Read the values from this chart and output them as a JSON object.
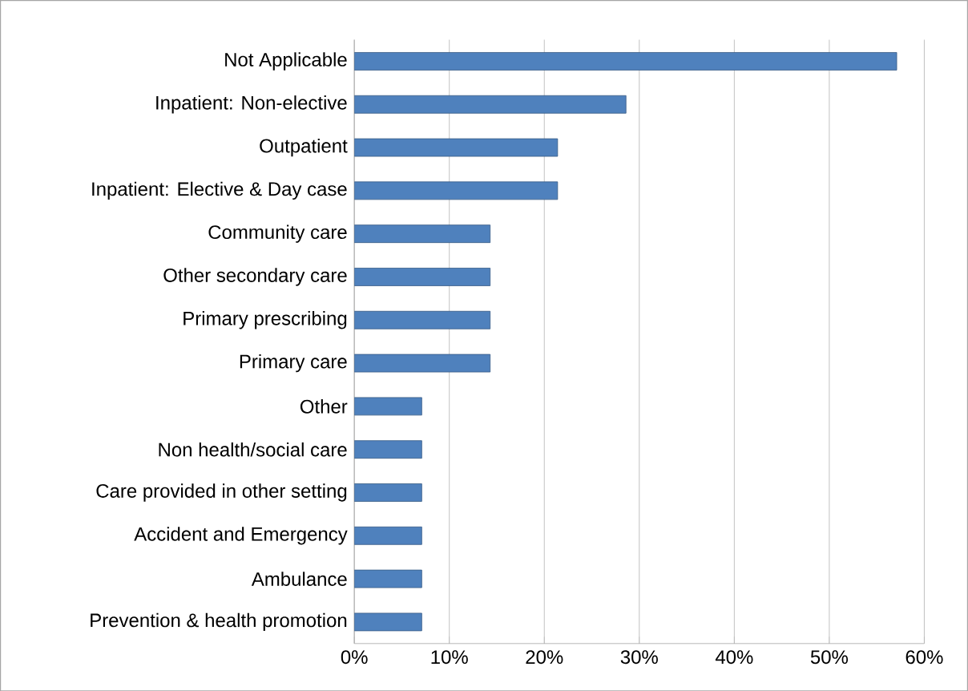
{
  "chart_data": {
    "type": "bar",
    "orientation": "horizontal",
    "categories": [
      "Not Applicable",
      "Inpatient: Non-elective",
      "Outpatient",
      "Inpatient: Elective & Day case",
      "Community care",
      "Other secondary care",
      "Primary prescribing",
      "Primary care",
      "Other",
      "Non health/social care",
      "Care provided in other setting",
      "Accident and Emergency",
      "Ambulance",
      "Prevention & health promotion"
    ],
    "values": [
      57.1,
      28.6,
      21.4,
      21.4,
      14.3,
      14.3,
      14.3,
      14.3,
      7.1,
      7.1,
      7.1,
      7.1,
      7.1,
      7.1
    ],
    "color": "#4f81bd",
    "xlim": [
      0,
      60
    ],
    "xticks": [
      {
        "value": 0,
        "label": "0%"
      },
      {
        "value": 10,
        "label": "10%"
      },
      {
        "value": 20,
        "label": "20%"
      },
      {
        "value": 30,
        "label": "30%"
      },
      {
        "value": 40,
        "label": "40%"
      },
      {
        "value": 50,
        "label": "50%"
      },
      {
        "value": 60,
        "label": "60%"
      }
    ],
    "grid": "x"
  }
}
